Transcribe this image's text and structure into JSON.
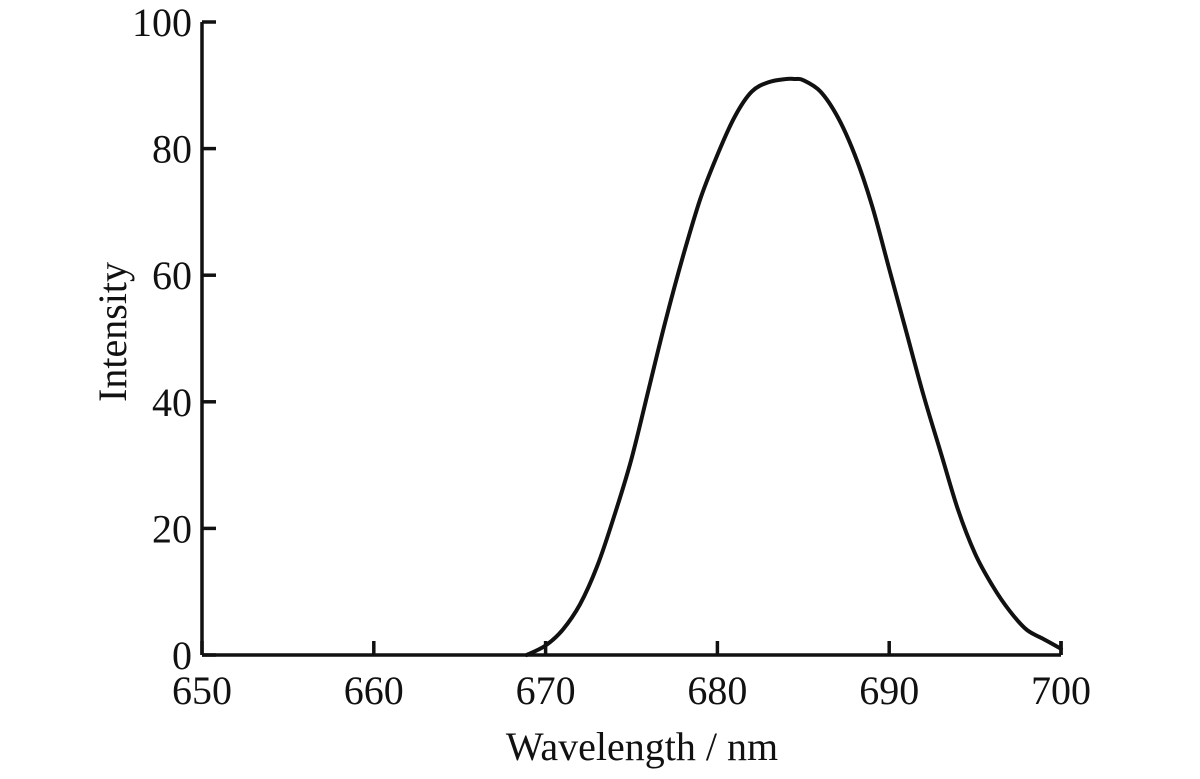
{
  "chart_data": {
    "type": "line",
    "xlabel": "Wavelength / nm",
    "ylabel": "Intensity",
    "xlim": [
      650,
      700
    ],
    "ylim": [
      0,
      100
    ],
    "x_ticks": [
      650,
      660,
      670,
      680,
      690,
      700
    ],
    "y_ticks": [
      0,
      20,
      40,
      60,
      80,
      100
    ],
    "x_tick_labels": [
      "650",
      "660",
      "670",
      "680",
      "690",
      "700"
    ],
    "y_tick_labels": [
      "0",
      "20",
      "40",
      "60",
      "80",
      "100"
    ],
    "grid": false,
    "legend": "none",
    "series": [
      {
        "x": [
          668.9,
          670,
          671,
          672,
          673,
          674,
          675,
          676,
          677,
          678,
          679,
          680,
          681,
          682,
          683,
          684,
          684.5,
          685,
          686,
          687,
          688,
          689,
          690,
          691,
          692,
          693,
          694,
          695,
          696,
          697,
          698,
          699,
          700
        ],
        "y": [
          0,
          1.5,
          4,
          8,
          14,
          22,
          31,
          42,
          53,
          63,
          72,
          79,
          85,
          89,
          90.5,
          91,
          91,
          90.8,
          89,
          85,
          79,
          71,
          61,
          51,
          41,
          32,
          23,
          16,
          11,
          7,
          4,
          2.5,
          1
        ]
      }
    ],
    "colors": {
      "line": "#111111",
      "axes": "#111111"
    }
  }
}
